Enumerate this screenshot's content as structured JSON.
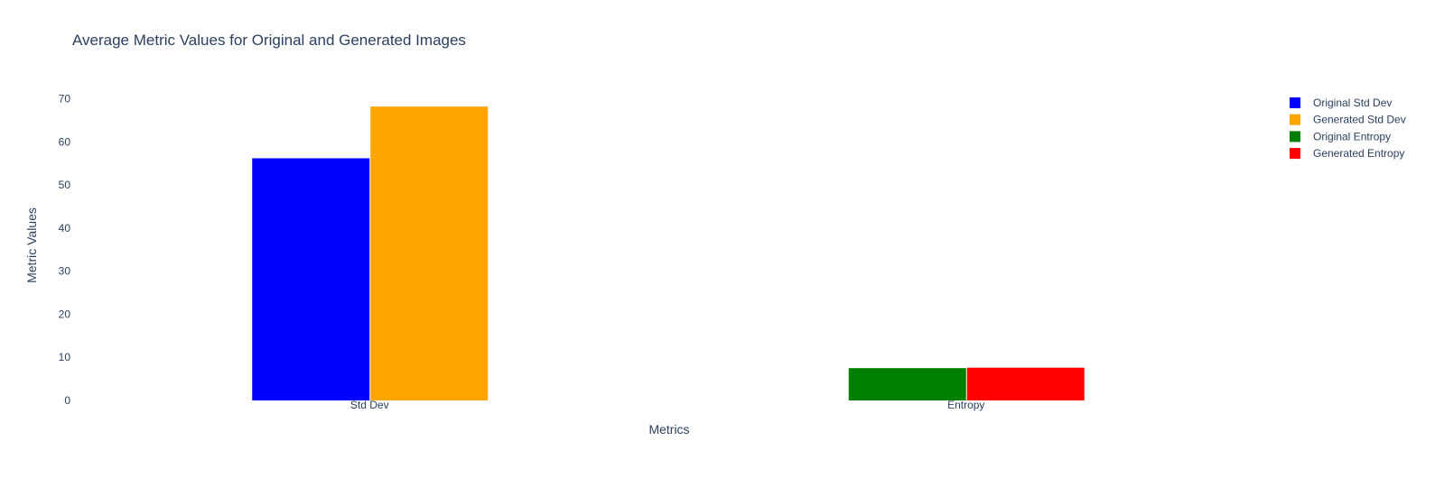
{
  "chart_data": {
    "type": "bar",
    "title": "Average Metric Values for Original and Generated Images",
    "xlabel": "Metrics",
    "ylabel": "Metric Values",
    "ylim": [
      0,
      72
    ],
    "yticks": [
      0,
      10,
      20,
      30,
      40,
      50,
      60,
      70
    ],
    "categories": [
      "Std Dev",
      "Entropy"
    ],
    "series": [
      {
        "name": "Original Std Dev",
        "color": "#0000ff",
        "category": "Std Dev",
        "value": 56.2
      },
      {
        "name": "Generated Std Dev",
        "color": "#ffa500",
        "category": "Std Dev",
        "value": 68.2
      },
      {
        "name": "Original Entropy",
        "color": "#008000",
        "category": "Entropy",
        "value": 7.5
      },
      {
        "name": "Generated Entropy",
        "color": "#ff0000",
        "category": "Entropy",
        "value": 7.6
      }
    ],
    "grid": false,
    "legend_position": "top-right"
  }
}
